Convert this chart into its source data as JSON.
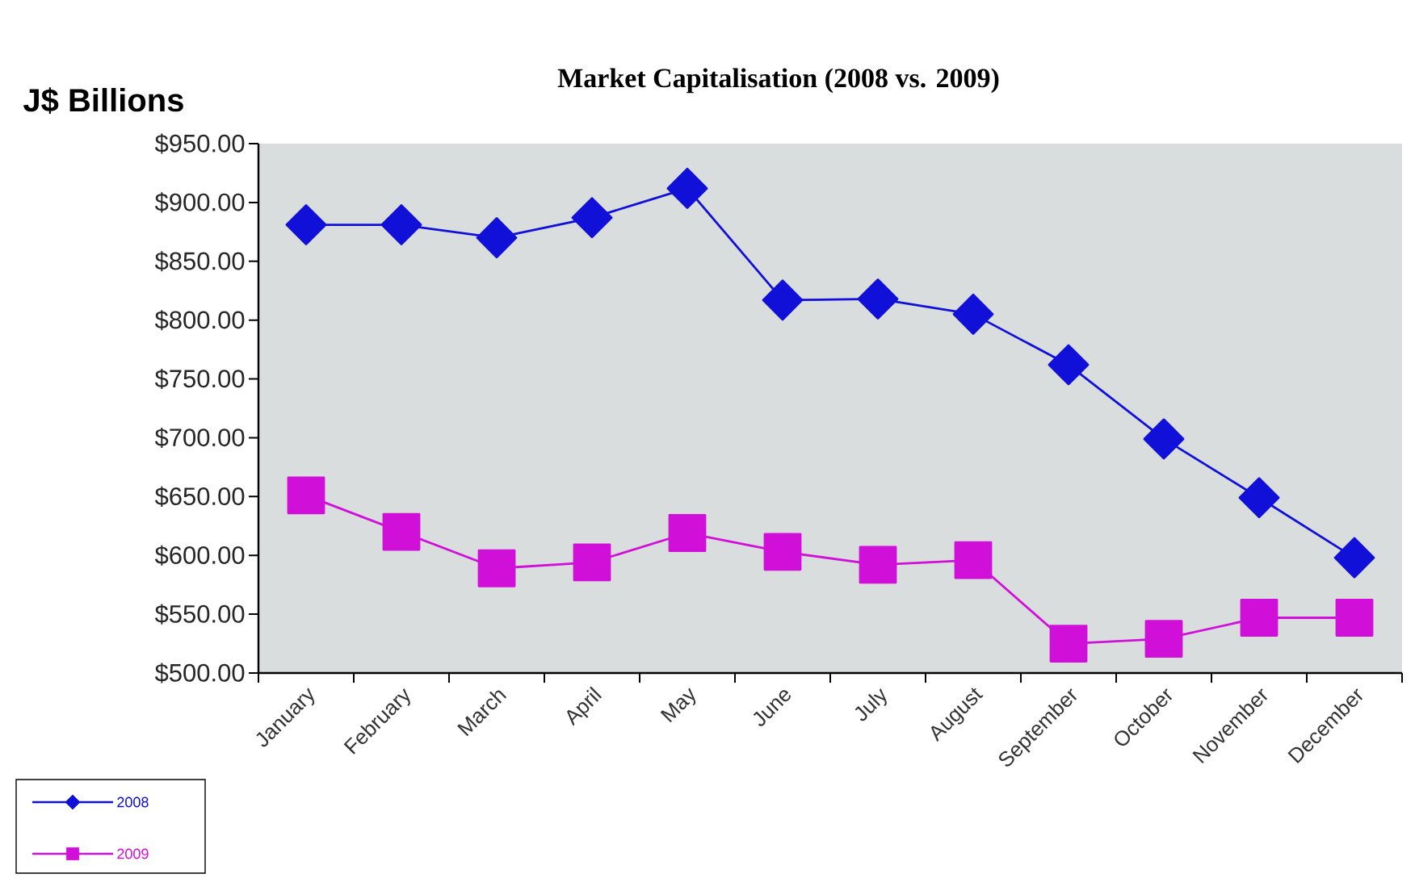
{
  "chart_data": {
    "type": "line",
    "title": "Market Capitalisation (2008 vs. 2009)",
    "ylabel": "J$ Billions",
    "categories": [
      "January",
      "February",
      "March",
      "April",
      "May",
      "June",
      "July",
      "August",
      "September",
      "October",
      "November",
      "December"
    ],
    "series": [
      {
        "name": "2008",
        "color": "#1010d8",
        "marker": "diamond",
        "values": [
          881,
          881,
          870,
          887,
          912,
          817,
          818,
          805,
          762,
          699,
          649,
          598
        ]
      },
      {
        "name": "2009",
        "color": "#d010d8",
        "marker": "square",
        "values": [
          651,
          620,
          589,
          594,
          619,
          603,
          592,
          596,
          525,
          529,
          547,
          547
        ]
      }
    ],
    "ylim": [
      500,
      950
    ],
    "yticks": [
      {
        "value": 500,
        "label": "$500.00"
      },
      {
        "value": 550,
        "label": "$550.00"
      },
      {
        "value": 600,
        "label": "$600.00"
      },
      {
        "value": 650,
        "label": "$650.00"
      },
      {
        "value": 700,
        "label": "$700.00"
      },
      {
        "value": 750,
        "label": "$750.00"
      },
      {
        "value": 800,
        "label": "$800.00"
      },
      {
        "value": 850,
        "label": "$850.00"
      },
      {
        "value": 900,
        "label": "$900.00"
      },
      {
        "value": 950,
        "label": "$950.00"
      }
    ],
    "legend": "bottom left",
    "line_style": "solid"
  }
}
